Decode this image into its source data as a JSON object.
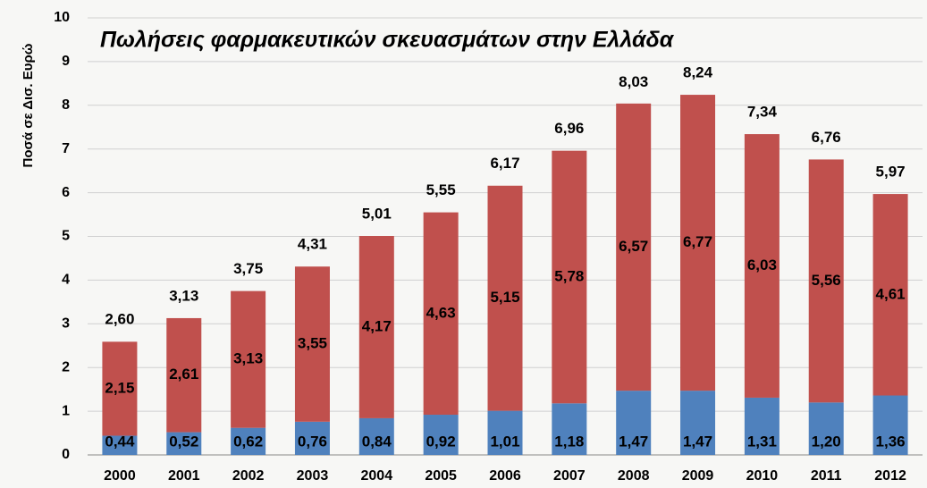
{
  "chart_data": {
    "type": "stacked_bar",
    "title": "Πωλήσεις φαρμακευτικών σκευασμάτων στην Ελλάδα",
    "y_label": "Ποσά σε Δισ. Ευρώ",
    "categories": [
      "2000",
      "2001",
      "2002",
      "2003",
      "2004",
      "2005",
      "2006",
      "2007",
      "2008",
      "2009",
      "2010",
      "2011",
      "2012"
    ],
    "series": [
      {
        "color": "#4f81bd",
        "values": [
          0.44,
          0.52,
          0.62,
          0.76,
          0.84,
          0.92,
          1.01,
          1.18,
          1.47,
          1.47,
          1.31,
          1.2,
          1.36
        ],
        "value_labels": [
          "0,44",
          "0,52",
          "0,62",
          "0,76",
          "0,84",
          "0,92",
          "1,01",
          "1,18",
          "1,47",
          "1,47",
          "1,31",
          "1,20",
          "1,36"
        ]
      },
      {
        "color": "#c0504d",
        "values": [
          2.15,
          2.61,
          3.13,
          3.55,
          4.17,
          4.63,
          5.15,
          5.78,
          6.57,
          6.77,
          6.03,
          5.56,
          4.61
        ],
        "value_labels": [
          "2,15",
          "2,61",
          "3,13",
          "3,55",
          "4,17",
          "4,63",
          "5,15",
          "5,78",
          "6,57",
          "6,77",
          "6,03",
          "5,56",
          "4,61"
        ]
      }
    ],
    "totals": {
      "values": [
        2.6,
        3.13,
        3.75,
        4.31,
        5.01,
        5.55,
        6.17,
        6.96,
        8.03,
        8.24,
        7.34,
        6.76,
        5.97
      ],
      "value_labels": [
        "2,60",
        "3,13",
        "3,75",
        "4,31",
        "5,01",
        "5,55",
        "6,17",
        "6,96",
        "8,03",
        "8,24",
        "7,34",
        "6,76",
        "5,97"
      ]
    },
    "ylim": [
      0,
      10
    ],
    "yticks": [
      0,
      1,
      2,
      3,
      4,
      5,
      6,
      7,
      8,
      9,
      10
    ],
    "grid": true
  }
}
